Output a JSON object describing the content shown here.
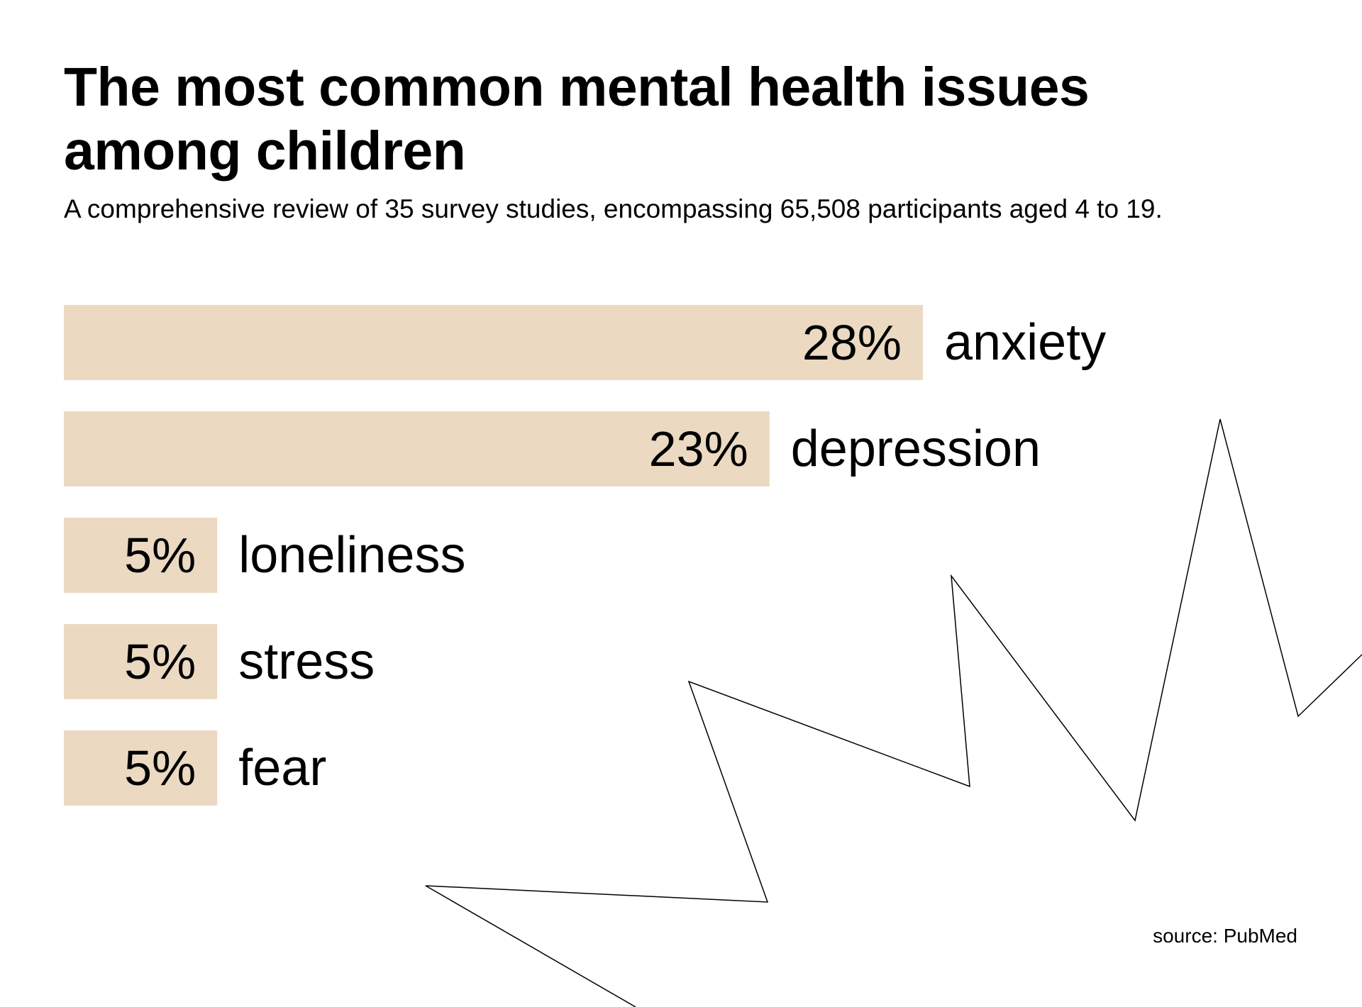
{
  "title": "The most common mental health issues among children",
  "subtitle": "A comprehensive review of 35 survey studies, encompassing 65,508 participants aged 4 to 19.",
  "source": "source: PubMed",
  "colors": {
    "bar": "#ebd9c2",
    "text": "#000000",
    "background": "#ffffff",
    "decoration_line": "#000000"
  },
  "chart_data": {
    "type": "bar",
    "orientation": "horizontal",
    "title": "The most common mental health issues among children",
    "subtitle": "A comprehensive review of 35 survey studies, encompassing 65,508 participants aged 4 to 19.",
    "categories": [
      "anxiety",
      "depression",
      "loneliness",
      "stress",
      "fear"
    ],
    "values": [
      28,
      23,
      5,
      5,
      5
    ],
    "value_labels": [
      "28%",
      "23%",
      "5%",
      "5%",
      "5%"
    ],
    "unit": "%",
    "xlabel": "",
    "ylabel": "",
    "grid": false,
    "legend": "none"
  }
}
